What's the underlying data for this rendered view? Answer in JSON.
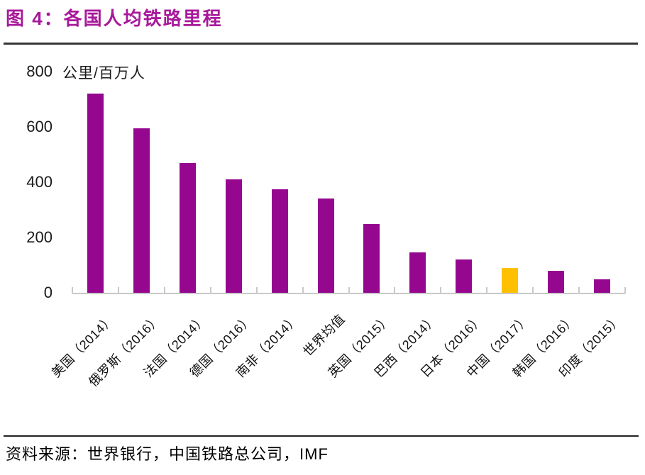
{
  "header": {
    "title": "图 4：各国人均铁路里程"
  },
  "chart_data": {
    "type": "bar",
    "title": "各国人均铁路里程",
    "unit_label": "公里/百万人",
    "categories": [
      "美国（2014）",
      "俄罗斯（2016）",
      "法国（2014）",
      "德国（2016）",
      "南非（2014）",
      "世界均值",
      "英国（2015）",
      "巴西（2014）",
      "日本（2016）",
      "中国（2017）",
      "韩国（2016）",
      "印度（2015）"
    ],
    "values": [
      720,
      595,
      470,
      410,
      375,
      340,
      250,
      145,
      120,
      90,
      80,
      50
    ],
    "highlight_index": 9,
    "xlabel": "",
    "ylabel": "公里/百万人",
    "ylim": [
      0,
      800
    ],
    "yticks": [
      0,
      200,
      400,
      600,
      800
    ],
    "grid": false,
    "legend": null,
    "x_label_rotation_deg": 45
  },
  "colors": {
    "bar": "#96078F",
    "highlight_bar": "#FFC000",
    "title_accent": "#A8189A",
    "axis": "#C9C9C9"
  },
  "footer": {
    "source": "资料来源：世界银行，中国铁路总公司，IMF"
  }
}
